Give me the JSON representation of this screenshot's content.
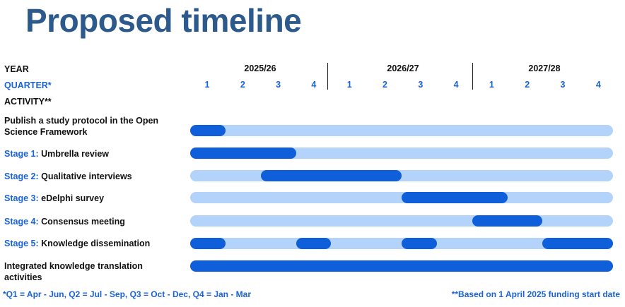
{
  "title": "Proposed timeline",
  "labels": {
    "year": "YEAR",
    "quarter": "QUARTER*",
    "activity": "ACTIVITY**"
  },
  "years": [
    "2025/26",
    "2026/27",
    "2027/28"
  ],
  "quarters": [
    "1",
    "2",
    "3",
    "4",
    "1",
    "2",
    "3",
    "4",
    "1",
    "2",
    "3",
    "4"
  ],
  "activities": [
    {
      "stage": "",
      "lines": [
        "Publish a study protocol in the Open",
        "Science Framework"
      ],
      "segments": [
        [
          0,
          1
        ]
      ]
    },
    {
      "stage": "Stage 1:",
      "lines": [
        " Umbrella review"
      ],
      "segments": [
        [
          0,
          3
        ]
      ]
    },
    {
      "stage": "Stage 2:",
      "lines": [
        " Qualitative interviews"
      ],
      "segments": [
        [
          2,
          6
        ]
      ]
    },
    {
      "stage": "Stage 3:",
      "lines": [
        " eDelphi survey"
      ],
      "segments": [
        [
          6,
          9
        ]
      ]
    },
    {
      "stage": "Stage 4:",
      "lines": [
        " Consensus meeting"
      ],
      "segments": [
        [
          8,
          10
        ]
      ]
    },
    {
      "stage": "Stage 5:",
      "lines": [
        " Knowledge dissemination"
      ],
      "segments": [
        [
          0,
          1
        ],
        [
          3,
          4
        ],
        [
          6,
          7
        ],
        [
          10,
          12
        ]
      ]
    },
    {
      "stage": "",
      "lines": [
        "Integrated knowledge translation",
        "activities"
      ],
      "segments": [
        [
          0,
          12
        ]
      ]
    }
  ],
  "footnotes": {
    "quarters": "*Q1 = Apr - Jun, Q2 = Jul - Sep, Q3 = Oct - Dec, Q4 = Jan - Mar",
    "funding": "**Based on 1 April 2025 funding start date"
  },
  "colors": {
    "title": "#2c5a8c",
    "accent": "#1a63d6",
    "track": "#b3d3fa",
    "bar": "#0f5fdb"
  }
}
